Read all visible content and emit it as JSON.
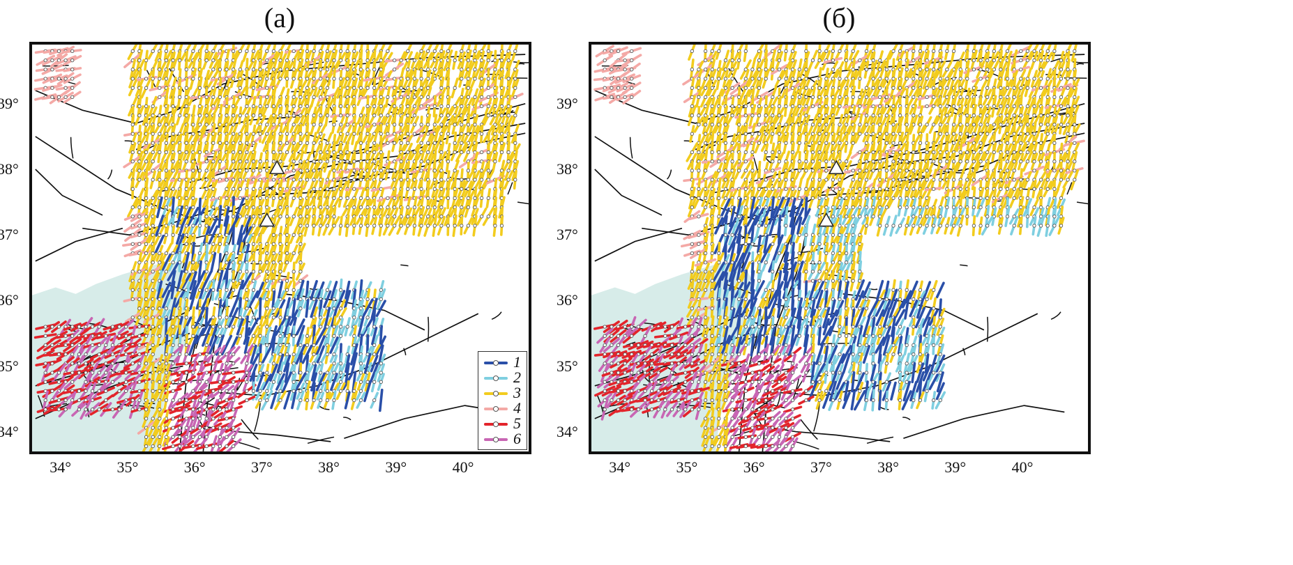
{
  "panels": [
    {
      "title": "(a)",
      "has_legend": true,
      "seed": 11
    },
    {
      "title": "(б)",
      "has_legend": false,
      "seed": 29
    }
  ],
  "axes": {
    "lon_min": 33.55,
    "lon_max": 40.95,
    "lat_min": 33.7,
    "lat_max": 39.9,
    "x_ticks": [
      "34°",
      "35°",
      "36°",
      "37°",
      "38°",
      "39°",
      "40°"
    ],
    "x_tick_values": [
      34,
      35,
      36,
      37,
      38,
      39,
      40
    ],
    "y_ticks": [
      "39°",
      "38°",
      "37°",
      "36°",
      "35°",
      "34°"
    ],
    "y_tick_values": [
      39,
      38,
      37,
      36,
      35,
      34
    ]
  },
  "legend": [
    {
      "label": "1",
      "color": "#2a4fa8"
    },
    {
      "label": "2",
      "color": "#7fcfe0"
    },
    {
      "label": "3",
      "color": "#f2cc1e"
    },
    {
      "label": "4",
      "color": "#f4a9a6"
    },
    {
      "label": "5",
      "color": "#e3242b"
    },
    {
      "label": "6",
      "color": "#c866b4"
    }
  ],
  "sea_color": "#d7ece9",
  "fault_color": "#111111",
  "volcano_markers": [
    {
      "lon": 37.2,
      "lat": 38.02
    },
    {
      "lon": 37.05,
      "lat": 37.22
    }
  ]
}
